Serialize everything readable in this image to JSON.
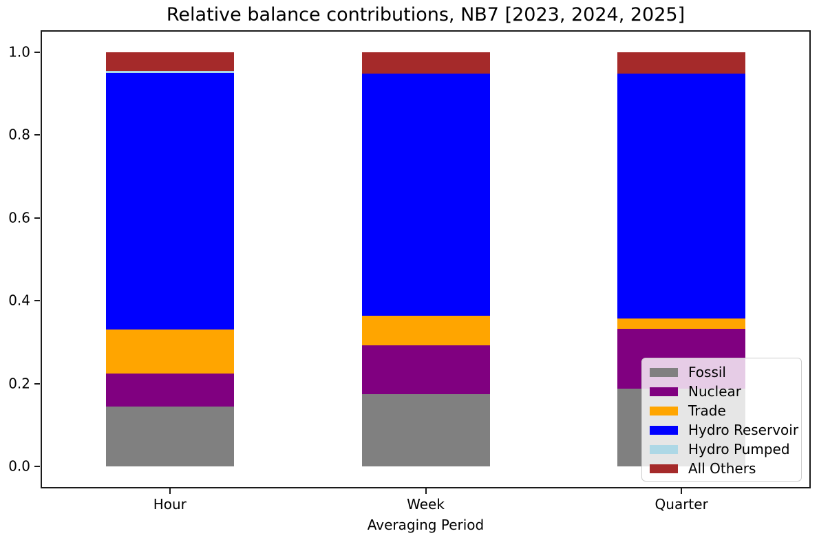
{
  "chart_data": {
    "type": "bar",
    "stacked": true,
    "title": "Relative balance contributions, NB7 [2023, 2024, 2025]",
    "xlabel": "Averaging Period",
    "ylabel": "",
    "categories": [
      "Hour",
      "Week",
      "Quarter"
    ],
    "series": [
      {
        "name": "Fossil",
        "color": "#808080",
        "values": [
          0.145,
          0.174,
          0.188
        ]
      },
      {
        "name": "Nuclear",
        "color": "#800080",
        "values": [
          0.08,
          0.118,
          0.144
        ]
      },
      {
        "name": "Trade",
        "color": "#FFA500",
        "values": [
          0.106,
          0.071,
          0.025
        ]
      },
      {
        "name": "Hydro Reservoir",
        "color": "#0000FF",
        "values": [
          0.619,
          0.585,
          0.591
        ]
      },
      {
        "name": "Hydro Pumped",
        "color": "#ADD8E6",
        "values": [
          0.006,
          0.001,
          0.001
        ]
      },
      {
        "name": "All Others",
        "color": "#A52A2A",
        "values": [
          0.044,
          0.051,
          0.051
        ]
      }
    ],
    "yticks": [
      0.0,
      0.2,
      0.4,
      0.6,
      0.8,
      1.0
    ],
    "ytick_labels": [
      "0.0",
      "0.2",
      "0.4",
      "0.6",
      "0.8",
      "1.0"
    ],
    "ylim": [
      -0.05,
      1.05
    ],
    "bar_width_fraction": 0.5,
    "grid": false,
    "legend": {
      "position": "lower right",
      "entries": [
        "Fossil",
        "Nuclear",
        "Trade",
        "Hydro Reservoir",
        "Hydro Pumped",
        "All Others"
      ]
    },
    "axis_color": "#1a1a1a",
    "background_color": "#ffffff"
  }
}
